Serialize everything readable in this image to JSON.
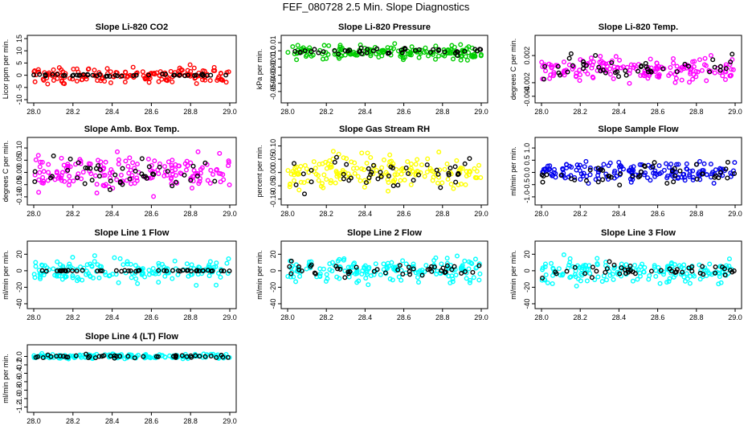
{
  "title": "FEF_080728  2.5 Min. Slope Diagnostics",
  "chart_data": [
    {
      "type": "scatter",
      "title": "Slope Li-820 CO2",
      "ylabel": "Licor ppm per min.",
      "xlim": [
        28.0,
        29.0
      ],
      "ylim": [
        -10,
        15
      ],
      "xticks": [
        28.0,
        28.2,
        28.4,
        28.6,
        28.8,
        29.0
      ],
      "xtick_labels": [
        "28.0",
        "28.2",
        "28.4",
        "28.6",
        "28.8",
        "29.0"
      ],
      "yticks": [
        -10,
        -5,
        0,
        5,
        10,
        15
      ],
      "ytick_labels": [
        "-10",
        "-5",
        "0",
        "5",
        "10",
        "15"
      ],
      "series": [
        {
          "name": "colored",
          "color": "#ff0000",
          "center": 0,
          "spread": 2.2
        },
        {
          "name": "black",
          "color": "#000000",
          "center": 0,
          "spread": 0.3
        }
      ]
    },
    {
      "type": "scatter",
      "title": "Slope Li-820 Pressure",
      "ylabel": "kPa per min.",
      "xlim": [
        28.0,
        29.0
      ],
      "ylim": [
        -0.06,
        0.015
      ],
      "xticks": [
        28.0,
        28.2,
        28.4,
        28.6,
        28.8,
        29.0
      ],
      "xtick_labels": [
        "28.0",
        "28.2",
        "28.4",
        "28.6",
        "28.8",
        "29.0"
      ],
      "yticks": [
        -0.05,
        -0.04,
        -0.03,
        -0.02,
        -0.01,
        0.0,
        0.01
      ],
      "ytick_labels": [
        "-0.05",
        "-0.04",
        "-0.03",
        "-0.02",
        "-0.01",
        "0.0",
        "0.01"
      ],
      "series": [
        {
          "name": "colored",
          "color": "#00cc00",
          "center": -0.002,
          "spread": 0.006
        },
        {
          "name": "black",
          "color": "#000000",
          "center": -0.001,
          "spread": 0.003
        }
      ]
    },
    {
      "type": "scatter",
      "title": "Slope Li-820 Temp.",
      "ylabel": "degrees C per min.",
      "xlim": [
        28.0,
        29.0
      ],
      "ylim": [
        -0.0045,
        0.0045
      ],
      "xticks": [
        28.0,
        28.2,
        28.4,
        28.6,
        28.8,
        29.0
      ],
      "xtick_labels": [
        "28.0",
        "28.2",
        "28.4",
        "28.6",
        "28.8",
        "29.0"
      ],
      "yticks": [
        -0.004,
        -0.002,
        0.002
      ],
      "ytick_labels": [
        "-0.004",
        "-0.002",
        "0.002"
      ],
      "series": [
        {
          "name": "colored",
          "color": "#ff00ff",
          "center": 0,
          "spread": 0.0012
        },
        {
          "name": "black",
          "color": "#000000",
          "center": 0,
          "spread": 0.0012
        }
      ]
    },
    {
      "type": "scatter",
      "title": "Slope Amb. Box Temp.",
      "ylabel": "degrees C per min.",
      "xlim": [
        28.0,
        29.0
      ],
      "ylim": [
        -0.12,
        0.13
      ],
      "xticks": [
        28.0,
        28.2,
        28.4,
        28.6,
        28.8,
        29.0
      ],
      "xtick_labels": [
        "28.0",
        "28.2",
        "28.4",
        "28.6",
        "28.8",
        "29.0"
      ],
      "yticks": [
        -0.1,
        -0.05,
        0.0,
        0.05,
        0.1
      ],
      "ytick_labels": [
        "-0.10",
        "-0.05",
        "0.00",
        "0.05",
        "0.10"
      ],
      "series": [
        {
          "name": "colored",
          "color": "#ff00ff",
          "center": 0,
          "spread": 0.05
        },
        {
          "name": "black",
          "color": "#000000",
          "center": 0,
          "spread": 0.04
        }
      ]
    },
    {
      "type": "scatter",
      "title": "Slope Gas Stream RH",
      "ylabel": "percent per min.",
      "xlim": [
        28.0,
        29.0
      ],
      "ylim": [
        -0.11,
        0.12
      ],
      "xticks": [
        28.0,
        28.2,
        28.4,
        28.6,
        28.8,
        29.0
      ],
      "xtick_labels": [
        "28.0",
        "28.2",
        "28.4",
        "28.6",
        "28.8",
        "29.0"
      ],
      "yticks": [
        -0.1,
        -0.05,
        0.0,
        0.05,
        0.1
      ],
      "ytick_labels": [
        "-0.10",
        "-0.05",
        "0.00",
        "0.05",
        "0.10"
      ],
      "series": [
        {
          "name": "colored",
          "color": "#ffff00",
          "center": 0,
          "spread": 0.045
        },
        {
          "name": "black",
          "color": "#000000",
          "center": 0,
          "spread": 0.04
        }
      ]
    },
    {
      "type": "scatter",
      "title": "Slope Sample Flow",
      "ylabel": "ml/min per min.",
      "xlim": [
        28.0,
        29.0
      ],
      "ylim": [
        -1.2,
        1.3
      ],
      "xticks": [
        28.0,
        28.2,
        28.4,
        28.6,
        28.8,
        29.0
      ],
      "xtick_labels": [
        "28.0",
        "28.2",
        "28.4",
        "28.6",
        "28.8",
        "29.0"
      ],
      "yticks": [
        -1.0,
        -0.5,
        0.0,
        0.5,
        1.0
      ],
      "ytick_labels": [
        "-1.0",
        "-0.5",
        "0.0",
        "0.5",
        "1.0"
      ],
      "series": [
        {
          "name": "colored",
          "color": "#0000ee",
          "center": 0,
          "spread": 0.3
        },
        {
          "name": "black",
          "color": "#000000",
          "center": 0,
          "spread": 0.35
        }
      ]
    },
    {
      "type": "scatter",
      "title": "Slope Line 1 Flow",
      "ylabel": "ml/min per min.",
      "xlim": [
        28.0,
        29.0
      ],
      "ylim": [
        -42,
        32
      ],
      "xticks": [
        28.0,
        28.2,
        28.4,
        28.6,
        28.8,
        29.0
      ],
      "xtick_labels": [
        "28.0",
        "28.2",
        "28.4",
        "28.6",
        "28.8",
        "29.0"
      ],
      "yticks": [
        -40,
        -20,
        0,
        20
      ],
      "ytick_labels": [
        "-40",
        "-20",
        "0",
        "20"
      ],
      "series": [
        {
          "name": "colored",
          "color": "#00ffff",
          "center": 0,
          "spread": 10
        },
        {
          "name": "black",
          "color": "#000000",
          "center": 0,
          "spread": 0.5
        }
      ]
    },
    {
      "type": "scatter",
      "title": "Slope Line 2 Flow",
      "ylabel": "ml/min per min.",
      "xlim": [
        28.0,
        29.0
      ],
      "ylim": [
        -42,
        32
      ],
      "xticks": [
        28.0,
        28.2,
        28.4,
        28.6,
        28.8,
        29.0
      ],
      "xtick_labels": [
        "28.0",
        "28.2",
        "28.4",
        "28.6",
        "28.8",
        "29.0"
      ],
      "yticks": [
        -40,
        -20,
        0,
        20
      ],
      "ytick_labels": [
        "-40",
        "-20",
        "0",
        "20"
      ],
      "series": [
        {
          "name": "colored",
          "color": "#00ffff",
          "center": 0,
          "spread": 10
        },
        {
          "name": "black",
          "color": "#000000",
          "center": 0,
          "spread": 6
        }
      ]
    },
    {
      "type": "scatter",
      "title": "Slope Line 3 Flow",
      "ylabel": "ml/min per min.",
      "xlim": [
        28.0,
        29.0
      ],
      "ylim": [
        -42,
        32
      ],
      "xticks": [
        28.0,
        28.2,
        28.4,
        28.6,
        28.8,
        29.0
      ],
      "xtick_labels": [
        "28.0",
        "28.2",
        "28.4",
        "28.6",
        "28.8",
        "29.0"
      ],
      "yticks": [
        -40,
        -20,
        0,
        20
      ],
      "ytick_labels": [
        "-40",
        "-20",
        "0",
        "20"
      ],
      "series": [
        {
          "name": "colored",
          "color": "#00ffff",
          "center": 0,
          "spread": 10
        },
        {
          "name": "black",
          "color": "#000000",
          "center": 0,
          "spread": 6
        }
      ]
    },
    {
      "type": "scatter",
      "title": "Slope Line 4 (LT) Flow",
      "ylabel": "ml/min per min.",
      "xlim": [
        28.0,
        29.0
      ],
      "ylim": [
        -1.25,
        0.2
      ],
      "xticks": [
        28.0,
        28.2,
        28.4,
        28.6,
        28.8,
        29.0
      ],
      "xtick_labels": [
        "28.0",
        "28.2",
        "28.4",
        "28.6",
        "28.8",
        "29.0"
      ],
      "yticks": [
        -1.2,
        -1.0,
        -0.8,
        -0.6,
        -0.4,
        -0.2,
        0.0
      ],
      "ytick_labels": [
        "-1.2",
        "-1.0",
        "-0.8",
        "-0.6",
        "-0.4",
        "-0.2",
        "0.0"
      ],
      "series": [
        {
          "name": "colored",
          "color": "#00ffff",
          "center": 0,
          "spread": 0.04
        },
        {
          "name": "black",
          "color": "#000000",
          "center": 0,
          "spread": 0.03
        }
      ]
    }
  ]
}
